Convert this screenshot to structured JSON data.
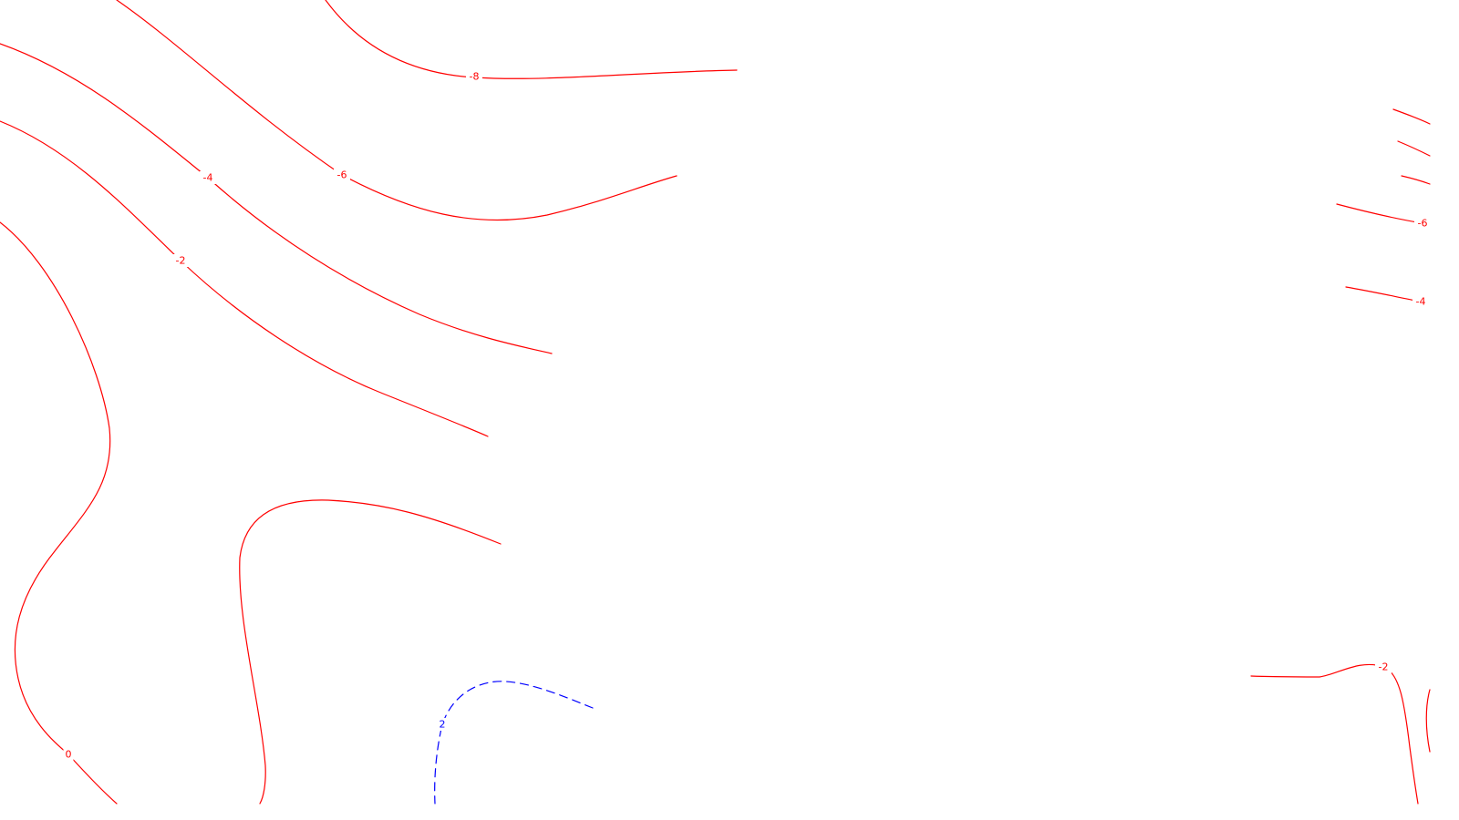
{
  "map": {
    "colors": {
      "negative": "#ff0000",
      "positive": "#0000ff",
      "background": "#ffffff"
    },
    "contours": [
      {
        "id": "c-minus8-top",
        "level": -8,
        "label": "-8",
        "style": "solid",
        "color_key": "negative"
      },
      {
        "id": "c-minus6-top",
        "level": -6,
        "label": "-6",
        "style": "solid",
        "color_key": "negative"
      },
      {
        "id": "c-minus4-top",
        "level": -4,
        "label": "-4",
        "style": "solid",
        "color_key": "negative"
      },
      {
        "id": "c-minus2-top",
        "level": -2,
        "label": "-2",
        "style": "solid",
        "color_key": "negative"
      },
      {
        "id": "c-zero-left",
        "level": 0,
        "label": "0",
        "style": "solid",
        "color_key": "negative"
      },
      {
        "id": "c-zero-inner",
        "level": 0,
        "label": "",
        "style": "solid",
        "color_key": "negative"
      },
      {
        "id": "c-plus2-bottom",
        "level": 2,
        "label": "2",
        "style": "dashed",
        "color_key": "positive"
      },
      {
        "id": "c-right-1",
        "level": null,
        "label": "",
        "style": "solid",
        "color_key": "negative"
      },
      {
        "id": "c-right-2",
        "level": null,
        "label": "",
        "style": "solid",
        "color_key": "negative"
      },
      {
        "id": "c-right-3",
        "level": null,
        "label": "",
        "style": "solid",
        "color_key": "negative"
      },
      {
        "id": "c-minus6-right",
        "level": -6,
        "label": "-6",
        "style": "solid",
        "color_key": "negative"
      },
      {
        "id": "c-minus4-right",
        "level": -4,
        "label": "-4",
        "style": "solid",
        "color_key": "negative"
      },
      {
        "id": "c-minus2-right",
        "level": -2,
        "label": "-2",
        "style": "solid",
        "color_key": "negative"
      },
      {
        "id": "c-right-edge",
        "level": null,
        "label": "",
        "style": "solid",
        "color_key": "negative"
      }
    ]
  }
}
